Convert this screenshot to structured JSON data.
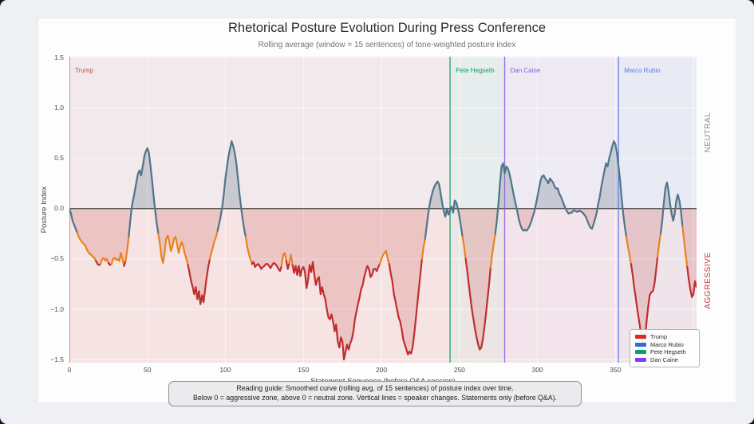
{
  "figure": {
    "note_line1": "Reading guide: Smoothed curve (rolling avg. of 15 sentences) of posture index over time.",
    "note_line2": "Below 0 = aggressive zone, above 0 = neutral zone. Vertical lines = speaker changes. Statements only (before Q&A)."
  },
  "chart_data": {
    "type": "line",
    "title": "Rhetorical Posture Evolution During Press Conference",
    "subtitle": "Rolling average (window = 15 sentences) of tone-weighted posture index",
    "xlabel": "Statement Sequence (before Q&A session)",
    "ylabel": "Posture Index",
    "x_range": [
      0,
      402
    ],
    "y_range": [
      -1.53,
      1.51
    ],
    "x_ticks": [
      0,
      50,
      100,
      150,
      200,
      250,
      300,
      350
    ],
    "x_grid": [
      50,
      100,
      150,
      200,
      250,
      300,
      350,
      400
    ],
    "y_ticks": [
      1.5,
      1.0,
      0.5,
      0.0,
      -0.5,
      -1.0,
      -1.5
    ],
    "grid_color": "rgba(255,255,255,0.65)",
    "zero_line_color": "#454545",
    "zones": {
      "neutral_bg": "rgba(110,120,135,0.07)",
      "aggressive_bg": "rgba(200,70,70,0.09)",
      "neutral_fill": "rgba(100,120,135,0.28)",
      "aggressive_fill": "rgba(201,74,74,0.20)",
      "neutral_label": "NEUTRAL",
      "aggressive_label": "AGGRESSIVE",
      "neutral_label_color": "#8c8c8c",
      "aggressive_label_color": "#d63031"
    },
    "line_colors": {
      "neutral": "#4e7589",
      "transition": "#e9831f",
      "aggressive": "#c02d2d",
      "threshold_neutral": -0.25,
      "threshold_aggressive": -0.535
    },
    "speakers": [
      {
        "name": "Trump",
        "x": 0,
        "color": "#c74a42",
        "band_color": "rgba(210,60,60,0.05)"
      },
      {
        "name": "Pete Hegseth",
        "x": 244,
        "color": "#0f9d6a",
        "band_color": "rgba(15,157,106,0.06)"
      },
      {
        "name": "Dan Caine",
        "x": 279,
        "color": "#9059e0",
        "band_color": "rgba(138,75,219,0.05)"
      },
      {
        "name": "Marco Rubio",
        "x": 352,
        "color": "#5b78e6",
        "band_color": "rgba(74,111,220,0.06)"
      }
    ],
    "legend": [
      {
        "label": "Trump",
        "color": "#d92b2b"
      },
      {
        "label": "Marco Rubio",
        "color": "#2f6bdb"
      },
      {
        "label": "Pete Hegseth",
        "color": "#0c9e68"
      },
      {
        "label": "Dan Caine",
        "color": "#7e3ff2"
      }
    ],
    "points": [
      [
        0,
        0.0
      ],
      [
        1,
        -0.05
      ],
      [
        2,
        -0.12
      ],
      [
        3,
        -0.16
      ],
      [
        4,
        -0.2
      ],
      [
        5,
        -0.24
      ],
      [
        6,
        -0.28
      ],
      [
        7,
        -0.31
      ],
      [
        8,
        -0.33
      ],
      [
        9,
        -0.35
      ],
      [
        10,
        -0.36
      ],
      [
        11,
        -0.4
      ],
      [
        12,
        -0.43
      ],
      [
        13,
        -0.45
      ],
      [
        14,
        -0.46
      ],
      [
        15,
        -0.48
      ],
      [
        16,
        -0.49
      ],
      [
        17,
        -0.52
      ],
      [
        18,
        -0.55
      ],
      [
        19,
        -0.56
      ],
      [
        20,
        -0.55
      ],
      [
        21,
        -0.5
      ],
      [
        22,
        -0.49
      ],
      [
        23,
        -0.52
      ],
      [
        24,
        -0.5
      ],
      [
        25,
        -0.54
      ],
      [
        26,
        -0.56
      ],
      [
        27,
        -0.55
      ],
      [
        28,
        -0.5
      ],
      [
        29,
        -0.49
      ],
      [
        30,
        -0.51
      ],
      [
        31,
        -0.5
      ],
      [
        32,
        -0.52
      ],
      [
        33,
        -0.44
      ],
      [
        34,
        -0.5
      ],
      [
        35,
        -0.57
      ],
      [
        36,
        -0.52
      ],
      [
        37,
        -0.42
      ],
      [
        38,
        -0.28
      ],
      [
        39,
        -0.12
      ],
      [
        40,
        0.02
      ],
      [
        41,
        0.1
      ],
      [
        42,
        0.18
      ],
      [
        43,
        0.27
      ],
      [
        44,
        0.35
      ],
      [
        45,
        0.38
      ],
      [
        46,
        0.33
      ],
      [
        47,
        0.42
      ],
      [
        48,
        0.52
      ],
      [
        49,
        0.57
      ],
      [
        50,
        0.6
      ],
      [
        51,
        0.55
      ],
      [
        52,
        0.42
      ],
      [
        53,
        0.28
      ],
      [
        54,
        0.12
      ],
      [
        55,
        -0.02
      ],
      [
        56,
        -0.15
      ],
      [
        57,
        -0.25
      ],
      [
        58,
        -0.35
      ],
      [
        59,
        -0.48
      ],
      [
        60,
        -0.54
      ],
      [
        61,
        -0.44
      ],
      [
        62,
        -0.3
      ],
      [
        63,
        -0.27
      ],
      [
        64,
        -0.33
      ],
      [
        65,
        -0.42
      ],
      [
        66,
        -0.38
      ],
      [
        67,
        -0.3
      ],
      [
        68,
        -0.28
      ],
      [
        69,
        -0.35
      ],
      [
        70,
        -0.44
      ],
      [
        71,
        -0.38
      ],
      [
        72,
        -0.33
      ],
      [
        73,
        -0.38
      ],
      [
        74,
        -0.45
      ],
      [
        75,
        -0.5
      ],
      [
        76,
        -0.56
      ],
      [
        77,
        -0.64
      ],
      [
        78,
        -0.72
      ],
      [
        79,
        -0.78
      ],
      [
        80,
        -0.85
      ],
      [
        81,
        -0.78
      ],
      [
        82,
        -0.9
      ],
      [
        83,
        -0.82
      ],
      [
        84,
        -0.95
      ],
      [
        85,
        -0.86
      ],
      [
        86,
        -0.93
      ],
      [
        87,
        -0.8
      ],
      [
        88,
        -0.68
      ],
      [
        89,
        -0.58
      ],
      [
        90,
        -0.5
      ],
      [
        91,
        -0.44
      ],
      [
        92,
        -0.38
      ],
      [
        93,
        -0.32
      ],
      [
        94,
        -0.28
      ],
      [
        95,
        -0.22
      ],
      [
        96,
        -0.15
      ],
      [
        97,
        -0.07
      ],
      [
        98,
        0.02
      ],
      [
        99,
        0.15
      ],
      [
        100,
        0.3
      ],
      [
        101,
        0.42
      ],
      [
        102,
        0.52
      ],
      [
        103,
        0.6
      ],
      [
        104,
        0.67
      ],
      [
        105,
        0.62
      ],
      [
        106,
        0.55
      ],
      [
        107,
        0.45
      ],
      [
        108,
        0.3
      ],
      [
        109,
        0.15
      ],
      [
        110,
        0.02
      ],
      [
        111,
        -0.1
      ],
      [
        112,
        -0.2
      ],
      [
        113,
        -0.28
      ],
      [
        114,
        -0.38
      ],
      [
        115,
        -0.45
      ],
      [
        116,
        -0.5
      ],
      [
        117,
        -0.55
      ],
      [
        118,
        -0.53
      ],
      [
        119,
        -0.58
      ],
      [
        120,
        -0.56
      ],
      [
        121,
        -0.55
      ],
      [
        122,
        -0.57
      ],
      [
        123,
        -0.6
      ],
      [
        124,
        -0.58
      ],
      [
        125,
        -0.57
      ],
      [
        126,
        -0.55
      ],
      [
        127,
        -0.55
      ],
      [
        128,
        -0.57
      ],
      [
        129,
        -0.59
      ],
      [
        130,
        -0.56
      ],
      [
        131,
        -0.54
      ],
      [
        132,
        -0.55
      ],
      [
        133,
        -0.57
      ],
      [
        134,
        -0.6
      ],
      [
        135,
        -0.62
      ],
      [
        136,
        -0.57
      ],
      [
        137,
        -0.46
      ],
      [
        138,
        -0.44
      ],
      [
        139,
        -0.52
      ],
      [
        140,
        -0.6
      ],
      [
        141,
        -0.54
      ],
      [
        142,
        -0.46
      ],
      [
        143,
        -0.56
      ],
      [
        144,
        -0.64
      ],
      [
        145,
        -0.57
      ],
      [
        146,
        -0.66
      ],
      [
        147,
        -0.57
      ],
      [
        148,
        -0.67
      ],
      [
        149,
        -0.6
      ],
      [
        150,
        -0.58
      ],
      [
        151,
        -0.63
      ],
      [
        152,
        -0.79
      ],
      [
        153,
        -0.71
      ],
      [
        154,
        -0.56
      ],
      [
        155,
        -0.63
      ],
      [
        156,
        -0.53
      ],
      [
        157,
        -0.66
      ],
      [
        158,
        -0.76
      ],
      [
        159,
        -0.7
      ],
      [
        160,
        -0.68
      ],
      [
        161,
        -0.85
      ],
      [
        162,
        -0.78
      ],
      [
        163,
        -0.85
      ],
      [
        164,
        -0.9
      ],
      [
        165,
        -1.0
      ],
      [
        166,
        -1.08
      ],
      [
        167,
        -1.1
      ],
      [
        168,
        -1.05
      ],
      [
        169,
        -1.12
      ],
      [
        170,
        -1.22
      ],
      [
        171,
        -1.15
      ],
      [
        172,
        -1.32
      ],
      [
        173,
        -1.38
      ],
      [
        174,
        -1.28
      ],
      [
        175,
        -1.32
      ],
      [
        176,
        -1.5
      ],
      [
        177,
        -1.42
      ],
      [
        178,
        -1.35
      ],
      [
        179,
        -1.4
      ],
      [
        180,
        -1.34
      ],
      [
        181,
        -1.3
      ],
      [
        182,
        -1.22
      ],
      [
        183,
        -1.1
      ],
      [
        184,
        -1.02
      ],
      [
        185,
        -0.95
      ],
      [
        186,
        -0.88
      ],
      [
        187,
        -0.8
      ],
      [
        188,
        -0.76
      ],
      [
        189,
        -0.68
      ],
      [
        190,
        -0.62
      ],
      [
        191,
        -0.57
      ],
      [
        192,
        -0.6
      ],
      [
        193,
        -0.68
      ],
      [
        194,
        -0.66
      ],
      [
        195,
        -0.6
      ],
      [
        196,
        -0.6
      ],
      [
        197,
        -0.62
      ],
      [
        198,
        -0.58
      ],
      [
        199,
        -0.55
      ],
      [
        200,
        -0.5
      ],
      [
        201,
        -0.46
      ],
      [
        202,
        -0.44
      ],
      [
        203,
        -0.42
      ],
      [
        204,
        -0.5
      ],
      [
        205,
        -0.55
      ],
      [
        206,
        -0.65
      ],
      [
        207,
        -0.72
      ],
      [
        208,
        -0.85
      ],
      [
        209,
        -0.92
      ],
      [
        210,
        -1.0
      ],
      [
        211,
        -1.08
      ],
      [
        212,
        -1.12
      ],
      [
        213,
        -1.2
      ],
      [
        214,
        -1.3
      ],
      [
        215,
        -1.35
      ],
      [
        216,
        -1.4
      ],
      [
        217,
        -1.45
      ],
      [
        218,
        -1.42
      ],
      [
        219,
        -1.44
      ],
      [
        220,
        -1.38
      ],
      [
        221,
        -1.25
      ],
      [
        222,
        -1.1
      ],
      [
        223,
        -0.95
      ],
      [
        224,
        -0.8
      ],
      [
        225,
        -0.65
      ],
      [
        226,
        -0.5
      ],
      [
        227,
        -0.38
      ],
      [
        228,
        -0.3
      ],
      [
        229,
        -0.18
      ],
      [
        230,
        -0.05
      ],
      [
        231,
        0.05
      ],
      [
        232,
        0.12
      ],
      [
        233,
        0.18
      ],
      [
        234,
        0.22
      ],
      [
        235,
        0.25
      ],
      [
        236,
        0.27
      ],
      [
        237,
        0.24
      ],
      [
        238,
        0.15
      ],
      [
        239,
        0.05
      ],
      [
        240,
        -0.03
      ],
      [
        241,
        -0.08
      ],
      [
        242,
        0.0
      ],
      [
        243,
        -0.06
      ],
      [
        244,
        -0.02
      ],
      [
        245,
        0.02
      ],
      [
        246,
        -0.04
      ],
      [
        247,
        0.08
      ],
      [
        248,
        0.06
      ],
      [
        249,
        0.0
      ],
      [
        250,
        -0.08
      ],
      [
        251,
        -0.18
      ],
      [
        252,
        -0.28
      ],
      [
        253,
        -0.38
      ],
      [
        254,
        -0.5
      ],
      [
        255,
        -0.62
      ],
      [
        256,
        -0.75
      ],
      [
        257,
        -0.88
      ],
      [
        258,
        -1.0
      ],
      [
        259,
        -1.1
      ],
      [
        260,
        -1.2
      ],
      [
        261,
        -1.28
      ],
      [
        262,
        -1.35
      ],
      [
        263,
        -1.4
      ],
      [
        264,
        -1.38
      ],
      [
        265,
        -1.3
      ],
      [
        266,
        -1.18
      ],
      [
        267,
        -1.05
      ],
      [
        268,
        -0.9
      ],
      [
        269,
        -0.75
      ],
      [
        270,
        -0.58
      ],
      [
        271,
        -0.45
      ],
      [
        272,
        -0.35
      ],
      [
        273,
        -0.25
      ],
      [
        274,
        -0.12
      ],
      [
        275,
        0.05
      ],
      [
        276,
        0.25
      ],
      [
        277,
        0.42
      ],
      [
        278,
        0.45
      ],
      [
        279,
        0.35
      ],
      [
        280,
        0.42
      ],
      [
        281,
        0.4
      ],
      [
        282,
        0.35
      ],
      [
        283,
        0.28
      ],
      [
        284,
        0.2
      ],
      [
        285,
        0.12
      ],
      [
        286,
        0.05
      ],
      [
        287,
        -0.02
      ],
      [
        288,
        -0.1
      ],
      [
        289,
        -0.16
      ],
      [
        290,
        -0.2
      ],
      [
        291,
        -0.22
      ],
      [
        292,
        -0.21
      ],
      [
        293,
        -0.22
      ],
      [
        294,
        -0.2
      ],
      [
        295,
        -0.17
      ],
      [
        296,
        -0.13
      ],
      [
        297,
        -0.08
      ],
      [
        298,
        -0.03
      ],
      [
        299,
        0.04
      ],
      [
        300,
        0.12
      ],
      [
        301,
        0.2
      ],
      [
        302,
        0.28
      ],
      [
        303,
        0.32
      ],
      [
        304,
        0.33
      ],
      [
        305,
        0.3
      ],
      [
        306,
        0.28
      ],
      [
        307,
        0.25
      ],
      [
        308,
        0.3
      ],
      [
        309,
        0.28
      ],
      [
        310,
        0.26
      ],
      [
        311,
        0.22
      ],
      [
        312,
        0.2
      ],
      [
        313,
        0.2
      ],
      [
        314,
        0.15
      ],
      [
        315,
        0.12
      ],
      [
        316,
        0.08
      ],
      [
        317,
        0.04
      ],
      [
        318,
        0.0
      ],
      [
        319,
        -0.03
      ],
      [
        320,
        -0.05
      ],
      [
        321,
        -0.04
      ],
      [
        322,
        -0.04
      ],
      [
        323,
        -0.02
      ],
      [
        324,
        -0.02
      ],
      [
        325,
        -0.03
      ],
      [
        326,
        -0.03
      ],
      [
        327,
        -0.02
      ],
      [
        328,
        -0.03
      ],
      [
        329,
        -0.04
      ],
      [
        330,
        -0.06
      ],
      [
        331,
        -0.08
      ],
      [
        332,
        -0.12
      ],
      [
        333,
        -0.16
      ],
      [
        334,
        -0.19
      ],
      [
        335,
        -0.2
      ],
      [
        336,
        -0.15
      ],
      [
        337,
        -0.1
      ],
      [
        338,
        -0.04
      ],
      [
        339,
        0.05
      ],
      [
        340,
        0.12
      ],
      [
        341,
        0.22
      ],
      [
        342,
        0.3
      ],
      [
        343,
        0.38
      ],
      [
        344,
        0.45
      ],
      [
        345,
        0.42
      ],
      [
        346,
        0.5
      ],
      [
        347,
        0.56
      ],
      [
        348,
        0.62
      ],
      [
        349,
        0.67
      ],
      [
        350,
        0.64
      ],
      [
        351,
        0.55
      ],
      [
        352,
        0.42
      ],
      [
        353,
        0.28
      ],
      [
        354,
        0.1
      ],
      [
        355,
        -0.05
      ],
      [
        356,
        -0.18
      ],
      [
        357,
        -0.28
      ],
      [
        358,
        -0.38
      ],
      [
        359,
        -0.46
      ],
      [
        360,
        -0.55
      ],
      [
        361,
        -0.65
      ],
      [
        362,
        -0.78
      ],
      [
        363,
        -0.88
      ],
      [
        364,
        -1.0
      ],
      [
        365,
        -1.1
      ],
      [
        366,
        -1.2
      ],
      [
        367,
        -1.3
      ],
      [
        368,
        -1.35
      ],
      [
        369,
        -1.28
      ],
      [
        370,
        -1.12
      ],
      [
        371,
        -0.97
      ],
      [
        372,
        -0.86
      ],
      [
        373,
        -0.83
      ],
      [
        374,
        -0.82
      ],
      [
        375,
        -0.75
      ],
      [
        376,
        -0.62
      ],
      [
        377,
        -0.48
      ],
      [
        378,
        -0.35
      ],
      [
        379,
        -0.25
      ],
      [
        380,
        -0.12
      ],
      [
        381,
        0.05
      ],
      [
        382,
        0.2
      ],
      [
        383,
        0.26
      ],
      [
        384,
        0.18
      ],
      [
        385,
        0.05
      ],
      [
        386,
        -0.05
      ],
      [
        387,
        -0.12
      ],
      [
        388,
        -0.05
      ],
      [
        389,
        0.08
      ],
      [
        390,
        0.14
      ],
      [
        391,
        0.08
      ],
      [
        392,
        -0.02
      ],
      [
        393,
        -0.18
      ],
      [
        394,
        -0.32
      ],
      [
        395,
        -0.45
      ],
      [
        396,
        -0.58
      ],
      [
        397,
        -0.7
      ],
      [
        398,
        -0.8
      ],
      [
        399,
        -0.88
      ],
      [
        400,
        -0.85
      ],
      [
        401,
        -0.72
      ],
      [
        402,
        -0.78
      ]
    ]
  }
}
